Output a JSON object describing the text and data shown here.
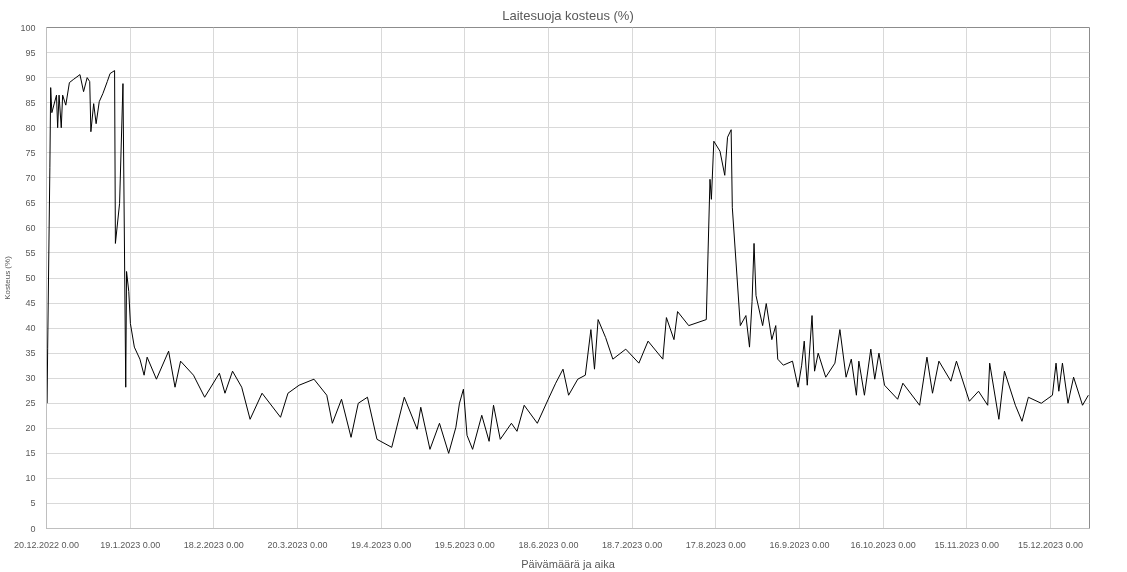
{
  "chart_data": {
    "type": "line",
    "title": "Laitesuoja kosteus (%)",
    "xlabel": "Päivämäärä ja aika",
    "ylabel": "Kosteus (%)",
    "xlim": [
      "2022-12-20",
      "2023-12-29"
    ],
    "ylim": [
      0,
      100
    ],
    "yticks": [
      0,
      5,
      10,
      15,
      20,
      25,
      30,
      35,
      40,
      45,
      50,
      55,
      60,
      65,
      70,
      75,
      80,
      85,
      90,
      95,
      100
    ],
    "xticks": [
      {
        "value": "2022-12-20",
        "label": "20.12.2022 0.00"
      },
      {
        "value": "2023-01-19",
        "label": "19.1.2023 0.00"
      },
      {
        "value": "2023-02-18",
        "label": "18.2.2023 0.00"
      },
      {
        "value": "2023-03-20",
        "label": "20.3.2023 0.00"
      },
      {
        "value": "2023-04-19",
        "label": "19.4.2023 0.00"
      },
      {
        "value": "2023-05-19",
        "label": "19.5.2023 0.00"
      },
      {
        "value": "2023-06-18",
        "label": "18.6.2023 0.00"
      },
      {
        "value": "2023-07-18",
        "label": "18.7.2023 0.00"
      },
      {
        "value": "2023-08-17",
        "label": "17.8.2023 0.00"
      },
      {
        "value": "2023-09-16",
        "label": "16.9.2023 0.00"
      },
      {
        "value": "2023-10-16",
        "label": "16.10.2023 0.00"
      },
      {
        "value": "2023-11-15",
        "label": "15.11.2023 0.00"
      },
      {
        "value": "2023-12-15",
        "label": "15.12.2023 0.00"
      }
    ],
    "grid": true,
    "marker": "none",
    "line_style": "solid",
    "series": [
      {
        "color": "#000000",
        "x": [
          "2022-12-20T05:00",
          "2022-12-20T10:00",
          "2022-12-21T05:00",
          "2022-12-21T12:00",
          "2022-12-21T22:00",
          "2022-12-23T14:00",
          "2022-12-24T00:00",
          "2022-12-24T12:00",
          "2022-12-25T07:00",
          "2022-12-25T19:00",
          "2022-12-26T22:00",
          "2022-12-28T05:00",
          "2022-12-29T14:00",
          "2023-01-01T00:00",
          "2023-01-02T07:00",
          "2023-01-03T14:00",
          "2023-01-04T12:00",
          "2023-01-04T22:00",
          "2023-01-05T22:00",
          "2023-01-06T19:00",
          "2023-01-07T22:00",
          "2023-01-09T05:00",
          "2023-01-10T19:00",
          "2023-01-11T19:00",
          "2023-01-13T10:00",
          "2023-01-13T17:00",
          "2023-01-15T05:00",
          "2023-01-16T10:00",
          "2023-01-17T10:00",
          "2023-01-17T17:00",
          "2023-01-18T12:00",
          "2023-01-19T02:00",
          "2023-01-20T12:00",
          "2023-01-22T12:00",
          "2023-01-24T00:00",
          "2023-01-25T02:00",
          "2023-01-28T10:00",
          "2023-02-01T19:00",
          "2023-02-04T02:00",
          "2023-02-06T02:00",
          "2023-02-10T17:00",
          "2023-02-14T17:00",
          "2023-02-20T00:00",
          "2023-02-22T00:00",
          "2023-02-24T17:00",
          "2023-02-28T00:00",
          "2023-03-03T00:00",
          "2023-03-07T07:00",
          "2023-03-13T22:00",
          "2023-03-16T14:00",
          "2023-03-20T14:00",
          "2023-03-25T22:00",
          "2023-03-30T12:00",
          "2023-04-01T12:00",
          "2023-04-04T19:00",
          "2023-04-08T05:00",
          "2023-04-10T19:00",
          "2023-04-14T02:00",
          "2023-04-17T12:00",
          "2023-04-22T19:00",
          "2023-04-27T07:00",
          "2023-05-01T22:00",
          "2023-05-03T05:00",
          "2023-05-06T12:00",
          "2023-05-09T22:00",
          "2023-05-13T05:00",
          "2023-05-15T19:00",
          "2023-05-17T02:00",
          "2023-05-18T12:00",
          "2023-05-19T19:00",
          "2023-05-21T19:00",
          "2023-05-25T02:00",
          "2023-05-27T17:00",
          "2023-05-29T07:00",
          "2023-05-31T17:00",
          "2023-06-04T17:00",
          "2023-06-06T17:00",
          "2023-06-09T07:00",
          "2023-06-14T00:00",
          "2023-06-17T22:00",
          "2023-06-20T14:00",
          "2023-06-23T05:00",
          "2023-06-25T05:00",
          "2023-06-28T12:00",
          "2023-07-01T05:00",
          "2023-07-03T05:00",
          "2023-07-04T12:00",
          "2023-07-05T19:00",
          "2023-07-08T12:00",
          "2023-07-11T02:00",
          "2023-07-15T17:00",
          "2023-07-20T10:00",
          "2023-07-23T17:00",
          "2023-07-29T00:00",
          "2023-07-30T07:00",
          "2023-08-02T00:00",
          "2023-08-03T07:00",
          "2023-08-07T07:00",
          "2023-08-13T14:00",
          "2023-08-14T22:00",
          "2023-08-15T10:00",
          "2023-08-16T07:00",
          "2023-08-18T12:00",
          "2023-08-20T05:00",
          "2023-08-21T05:00",
          "2023-08-22T12:00",
          "2023-08-22T22:00",
          "2023-08-25T19:00",
          "2023-08-27T19:00",
          "2023-08-29T02:00",
          "2023-08-30T00:00",
          "2023-08-30T17:00",
          "2023-08-31T10:00",
          "2023-09-02T19:00",
          "2023-09-04T02:00",
          "2023-09-06T02:00",
          "2023-09-07T12:00",
          "2023-09-08T05:00",
          "2023-09-10T05:00",
          "2023-09-13T12:00",
          "2023-09-15T12:00",
          "2023-09-16T19:00",
          "2023-09-17T17:00",
          "2023-09-18T19:00",
          "2023-09-20T12:00",
          "2023-09-21T10:00",
          "2023-09-22T17:00",
          "2023-09-25T10:00",
          "2023-09-28T17:00",
          "2023-09-30T12:00",
          "2023-10-02T17:00",
          "2023-10-04T14:00",
          "2023-10-06T10:00",
          "2023-10-07T07:00",
          "2023-10-09T07:00",
          "2023-10-11T14:00",
          "2023-10-13T00:00",
          "2023-10-14T12:00",
          "2023-10-16T12:00",
          "2023-10-21T05:00",
          "2023-10-23T02:00",
          "2023-10-29T02:00",
          "2023-10-31T17:00",
          "2023-11-02T17:00",
          "2023-11-05T00:00",
          "2023-11-09T07:00",
          "2023-11-11T07:00",
          "2023-11-15T22:00",
          "2023-11-19T05:00",
          "2023-11-22T12:00",
          "2023-11-23T05:00",
          "2023-11-26T12:00",
          "2023-11-28T12:00",
          "2023-12-02T10:00",
          "2023-12-04T19:00",
          "2023-12-07T02:00",
          "2023-12-11T17:00",
          "2023-12-15T17:00",
          "2023-12-17T00:00",
          "2023-12-18T00:00",
          "2023-12-19T07:00",
          "2023-12-21T07:00",
          "2023-12-23T07:00",
          "2023-12-26T12:00",
          "2023-12-28T14:00"
        ],
        "values": [
          25,
          36,
          72,
          88,
          83,
          86.5,
          80,
          86.5,
          80,
          86.5,
          84.5,
          89,
          89.6,
          90.6,
          87.2,
          90,
          89.2,
          79.2,
          84.8,
          80.8,
          85.2,
          86.8,
          89.2,
          90.8,
          91.4,
          56.9,
          64.9,
          88.8,
          28.2,
          51.3,
          47.3,
          40.9,
          36.2,
          33.8,
          30.6,
          34.2,
          29.8,
          35.4,
          28.2,
          33.4,
          30.6,
          26.2,
          31,
          27,
          31.4,
          28.2,
          21.8,
          27,
          22.2,
          27,
          28.6,
          29.8,
          26.6,
          21,
          25.8,
          18.2,
          25,
          26.2,
          17.8,
          16.2,
          26.2,
          19.8,
          24.2,
          15.8,
          21,
          15,
          20.2,
          25,
          27.8,
          18.6,
          15.8,
          22.6,
          17.4,
          24.6,
          17.8,
          21,
          19.4,
          24.6,
          21,
          25.8,
          29,
          31.8,
          26.6,
          29.8,
          30.6,
          39.7,
          31.8,
          41.7,
          38.1,
          33.8,
          35.8,
          33,
          37.4,
          33.8,
          42.1,
          37.7,
          43.3,
          40.5,
          41.7,
          69.7,
          65.7,
          77.3,
          75.3,
          70.5,
          78.1,
          79.6,
          64.1,
          40.5,
          42.5,
          36.2,
          45.3,
          56.9,
          46.5,
          40.5,
          44.9,
          37.7,
          40.5,
          33.8,
          32.6,
          33.4,
          28.2,
          32.6,
          37.4,
          28.6,
          42.5,
          31.4,
          35,
          30.2,
          33,
          39.7,
          30.2,
          33.8,
          26.6,
          33.4,
          26.6,
          35.8,
          29.8,
          35,
          28.6,
          25.8,
          29,
          24.6,
          34.2,
          27,
          33.4,
          29.4,
          33.4,
          25.4,
          27.4,
          24.6,
          33,
          21.8,
          31.4,
          24.6,
          21.4,
          26.2,
          25,
          26.6,
          33,
          27.4,
          33,
          25,
          30.2,
          24.6,
          26.6
        ]
      }
    ]
  }
}
